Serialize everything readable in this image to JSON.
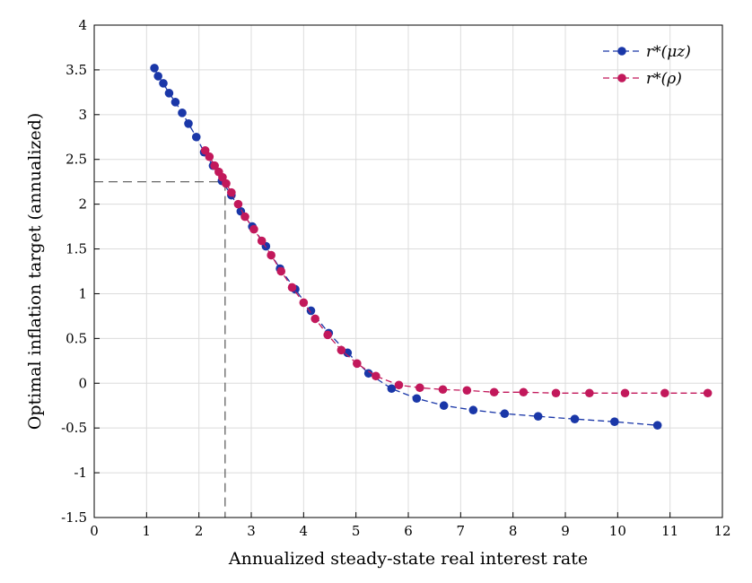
{
  "chart_data": {
    "type": "line",
    "title": "",
    "xlabel": "Annualized steady-state real interest rate",
    "ylabel": "Optimal inflation target (annualized)",
    "xlim": [
      0,
      12
    ],
    "ylim": [
      -1.5,
      4
    ],
    "xticks": [
      0,
      1,
      2,
      3,
      4,
      5,
      6,
      7,
      8,
      9,
      10,
      11,
      12
    ],
    "yticks": [
      -1.5,
      -1,
      -0.5,
      0,
      0.5,
      1,
      1.5,
      2,
      2.5,
      3,
      3.5,
      4
    ],
    "xtick_labels": [
      "0",
      "1",
      "2",
      "3",
      "4",
      "5",
      "6",
      "7",
      "8",
      "9",
      "10",
      "11",
      "12"
    ],
    "ytick_labels": [
      "-1.5",
      "-1",
      "-0.5",
      "0",
      "0.5",
      "1",
      "1.5",
      "2",
      "2.5",
      "3",
      "3.5",
      "4"
    ],
    "grid": true,
    "legend_position": "top-right",
    "reference_point": {
      "x": 2.5,
      "y": 2.25
    },
    "series": [
      {
        "name": "r*(μz)",
        "color": "#1a37a8",
        "x": [
          1.15,
          1.22,
          1.32,
          1.43,
          1.55,
          1.68,
          1.8,
          1.95,
          2.1,
          2.27,
          2.44,
          2.62,
          2.8,
          3.02,
          3.28,
          3.55,
          3.84,
          4.14,
          4.48,
          4.84,
          5.24,
          5.68,
          6.16,
          6.68,
          7.24,
          7.84,
          8.48,
          9.18,
          9.94,
          10.76
        ],
        "y": [
          3.52,
          3.43,
          3.35,
          3.24,
          3.14,
          3.02,
          2.9,
          2.75,
          2.58,
          2.43,
          2.26,
          2.1,
          1.92,
          1.75,
          1.53,
          1.28,
          1.05,
          0.81,
          0.56,
          0.34,
          0.11,
          -0.06,
          -0.17,
          -0.25,
          -0.3,
          -0.34,
          -0.37,
          -0.4,
          -0.43,
          -0.47
        ]
      },
      {
        "name": "r*(ρ)",
        "color": "#c2185b",
        "x": [
          2.12,
          2.2,
          2.3,
          2.38,
          2.45,
          2.52,
          2.62,
          2.75,
          2.88,
          3.05,
          3.2,
          3.38,
          3.57,
          3.78,
          4.0,
          4.22,
          4.46,
          4.72,
          5.02,
          5.38,
          5.82,
          6.22,
          6.66,
          7.12,
          7.64,
          8.2,
          8.82,
          9.46,
          10.14,
          10.9,
          11.72
        ],
        "y": [
          2.6,
          2.53,
          2.43,
          2.36,
          2.3,
          2.23,
          2.13,
          2.0,
          1.86,
          1.72,
          1.59,
          1.43,
          1.25,
          1.07,
          0.9,
          0.72,
          0.54,
          0.37,
          0.22,
          0.08,
          -0.02,
          -0.05,
          -0.07,
          -0.08,
          -0.1,
          -0.1,
          -0.11,
          -0.11,
          -0.11,
          -0.11,
          -0.11
        ]
      }
    ]
  }
}
